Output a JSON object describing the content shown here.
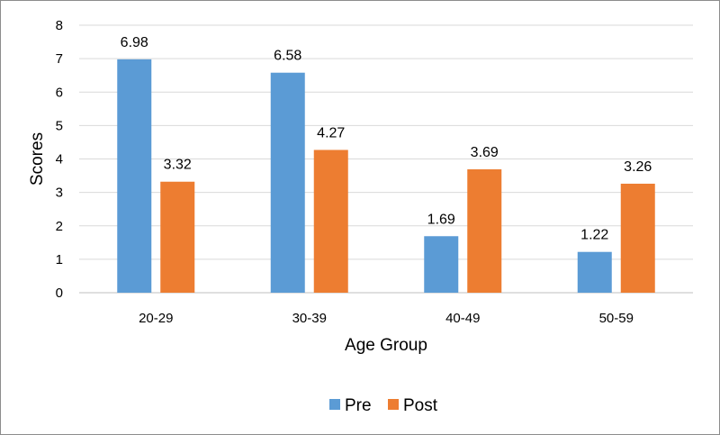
{
  "chart_data": {
    "type": "bar",
    "categories": [
      "20-29",
      "30-39",
      "40-49",
      "50-59"
    ],
    "series": [
      {
        "name": "Pre",
        "values": [
          6.98,
          6.58,
          1.69,
          1.22
        ],
        "color": "#5B9BD5"
      },
      {
        "name": "Post",
        "values": [
          3.32,
          4.27,
          3.69,
          3.26
        ],
        "color": "#ED7D31"
      }
    ],
    "data_labels": [
      [
        "6.98",
        "6.58",
        "1.69",
        "1.22"
      ],
      [
        "3.32",
        "4.27",
        "3.69",
        "3.26"
      ]
    ],
    "title": "",
    "xlabel": "Age Group",
    "ylabel": "Scores",
    "ylim": [
      0,
      8
    ],
    "yticks": [
      "0",
      "1",
      "2",
      "3",
      "4",
      "5",
      "6",
      "7",
      "8"
    ],
    "grid": true,
    "legend_position": "bottom",
    "grid_color": "#D9D9D9",
    "axis_color": "#BFBFBF"
  }
}
